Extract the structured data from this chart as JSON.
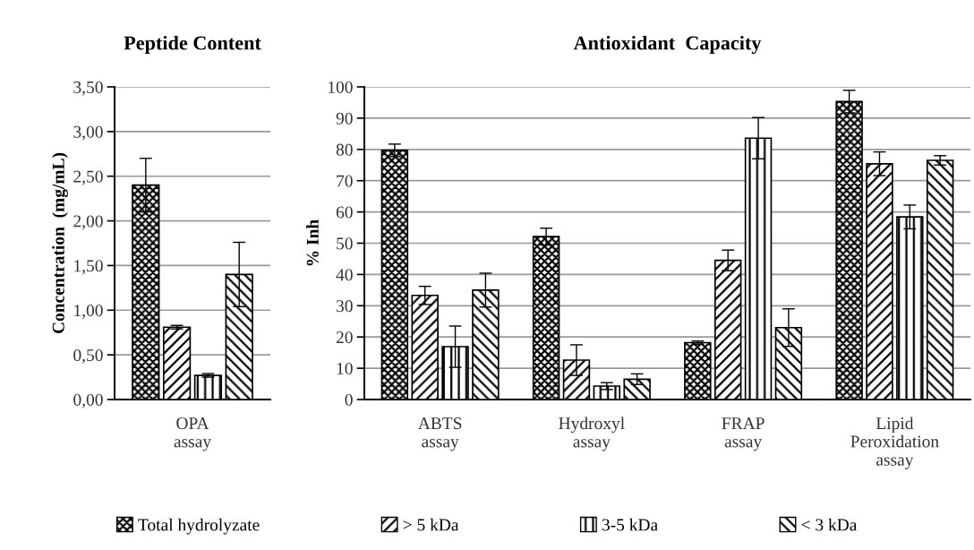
{
  "chart_data": [
    {
      "type": "bar",
      "title": "Peptide Content",
      "ylabel": "Concentration  (mg/mL)",
      "categories": [
        "OPA\nassay"
      ],
      "series": [
        {
          "name": "Total hydrolyzate",
          "color": "#000000",
          "values": [
            2.4
          ],
          "errors": [
            0.3
          ]
        },
        {
          "name": "> 5 kDa",
          "color": "#000000",
          "values": [
            0.81
          ],
          "errors": [
            0.02
          ]
        },
        {
          "name": "3-5 kDa",
          "color": "#000000",
          "values": [
            0.27
          ],
          "errors": [
            0.02
          ]
        },
        {
          "name": "< 3 kDa",
          "color": "#000000",
          "values": [
            1.4
          ],
          "errors": [
            0.36
          ]
        }
      ],
      "ylim": [
        0,
        3.5
      ],
      "yticks": [
        {
          "value": 0,
          "label": "0,00"
        },
        {
          "value": 0.5,
          "label": "0,50"
        },
        {
          "value": 1.0,
          "label": "1,00"
        },
        {
          "value": 1.5,
          "label": "1,50"
        },
        {
          "value": 2.0,
          "label": "2,00"
        },
        {
          "value": 2.5,
          "label": "2,50"
        },
        {
          "value": 3.0,
          "label": "3,00"
        },
        {
          "value": 3.5,
          "label": "3,50"
        }
      ],
      "grid": "y",
      "legend": "bottom"
    },
    {
      "type": "bar",
      "title": "Antioxidant  Capacity",
      "ylabel": "% Inh",
      "categories": [
        "ABTS\nassay",
        "Hydroxyl\nassay",
        "FRAP\nassay",
        "Lipid\nPeroxidation\nassay"
      ],
      "series": [
        {
          "color": "#000000",
          "values": [
            79.7,
            52.1,
            18.2,
            95.3
          ],
          "errors": [
            2.0,
            2.7,
            0.5,
            3.6
          ]
        },
        {
          "color": "#000000",
          "values": [
            33.3,
            12.6,
            44.5,
            75.4
          ],
          "errors": [
            2.9,
            4.9,
            3.3,
            3.8
          ]
        },
        {
          "color": "#000000",
          "values": [
            16.9,
            4.3,
            83.6,
            58.4
          ],
          "errors": [
            6.6,
            1.1,
            6.6,
            3.8
          ]
        },
        {
          "color": "#000000",
          "values": [
            35.0,
            6.5,
            23.0,
            76.5
          ],
          "errors": [
            5.4,
            1.7,
            6.0,
            1.5
          ]
        }
      ],
      "ylim": [
        0,
        100
      ],
      "yticks": [
        0,
        10,
        20,
        30,
        40,
        50,
        60,
        70,
        80,
        90,
        100
      ],
      "grid": "y"
    }
  ]
}
